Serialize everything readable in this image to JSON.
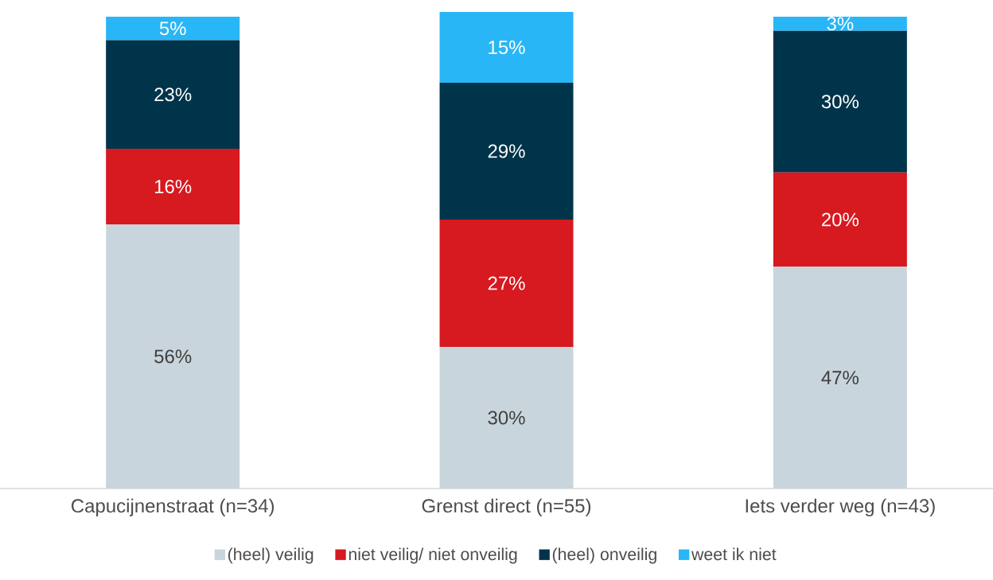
{
  "chart_data": {
    "type": "bar",
    "stacked": true,
    "categories": [
      "Capucijnenstraat (n=34)",
      "Grenst direct (n=55)",
      "Iets verder weg (n=43)"
    ],
    "series": [
      {
        "name": "(heel) veilig",
        "color": "#c9d5dc",
        "values": [
          56,
          30,
          47
        ],
        "value_labels": [
          "56%",
          "30%",
          "47%"
        ]
      },
      {
        "name": "niet veilig/ niet onveilig",
        "color": "#d71920",
        "values": [
          16,
          27,
          20
        ],
        "value_labels": [
          "16%",
          "27%",
          "20%"
        ]
      },
      {
        "name": "(heel) onveilig",
        "color": "#00344b",
        "values": [
          23,
          29,
          30
        ],
        "value_labels": [
          "23%",
          "29%",
          "30%"
        ]
      },
      {
        "name": "weet ik niet",
        "color": "#29b6f6",
        "values": [
          5,
          15,
          3
        ],
        "value_labels": [
          "5%",
          "15%",
          "3%"
        ]
      }
    ],
    "legend": "bottom"
  }
}
